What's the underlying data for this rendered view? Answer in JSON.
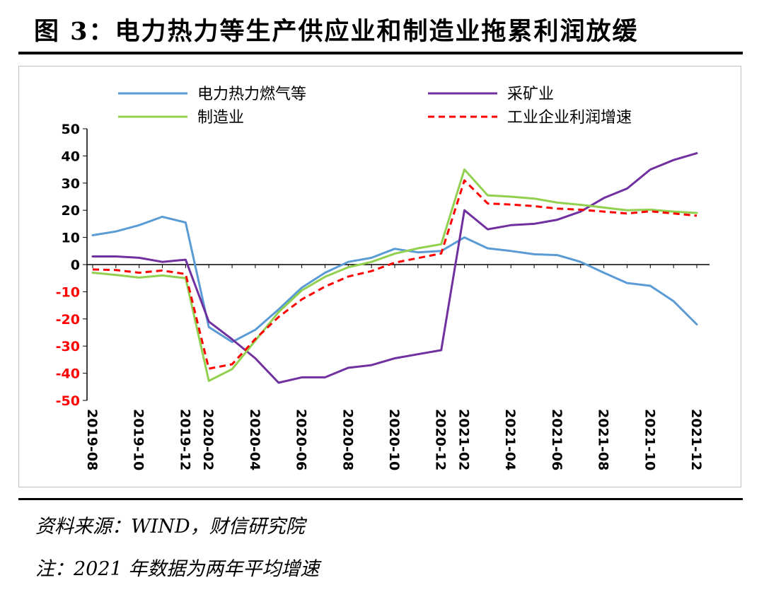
{
  "figure": {
    "title": "图 3：电力热力等生产供应业和制造业拖累利润放缓",
    "source": "资料来源：WIND，财信研究院",
    "note": "注：2021 年数据为两年平均增速"
  },
  "colors": {
    "power": "#5b9bd5",
    "mining": "#7030a0",
    "manufacturing": "#92d050",
    "industrial": "#ff0000",
    "negative_tick": "#ff0000",
    "positive_tick": "#000000"
  },
  "chart_data": {
    "type": "line",
    "title": "",
    "xlabel": "",
    "ylabel": "",
    "ylim": [
      -50,
      50
    ],
    "yticks": [
      50,
      40,
      30,
      20,
      10,
      0,
      -10,
      -20,
      -30,
      -40,
      -50
    ],
    "grid": false,
    "legend_position": "top",
    "x": [
      "2019-08",
      "2019-09",
      "2019-10",
      "2019-11",
      "2019-12",
      "2020-02",
      "2020-03",
      "2020-04",
      "2020-05",
      "2020-06",
      "2020-07",
      "2020-08",
      "2020-09",
      "2020-10",
      "2020-11",
      "2020-12",
      "2021-02",
      "2021-03",
      "2021-04",
      "2021-05",
      "2021-06",
      "2021-07",
      "2021-08",
      "2021-09",
      "2021-10",
      "2021-11",
      "2021-12"
    ],
    "xtick_labels": [
      "2019-08",
      "2019-10",
      "2019-12",
      "2020-02",
      "2020-04",
      "2020-06",
      "2020-08",
      "2020-10",
      "2020-12",
      "2021-02",
      "2021-04",
      "2021-06",
      "2021-08",
      "2021-10",
      "2021-12"
    ],
    "series": [
      {
        "name": "电力热力燃气等",
        "color": "#5b9bd5",
        "dashed": false,
        "values": [
          10.8,
          12.2,
          14.5,
          17.6,
          15.5,
          -23.0,
          -28.5,
          -24.0,
          -16.5,
          -8.5,
          -3.0,
          1.0,
          2.5,
          5.8,
          4.5,
          5.0,
          10.0,
          6.0,
          5.0,
          3.8,
          3.5,
          1.0,
          -3.0,
          -6.8,
          -7.8,
          -13.5,
          -22.0
        ]
      },
      {
        "name": "采矿业",
        "color": "#7030a0",
        "dashed": false,
        "values": [
          3.0,
          3.0,
          2.5,
          1.0,
          1.8,
          -21.0,
          -27.5,
          -34.5,
          -43.5,
          -41.5,
          -41.5,
          -38.0,
          -37.0,
          -34.5,
          -33.0,
          -31.5,
          20.0,
          13.0,
          14.5,
          15.0,
          16.5,
          19.5,
          24.5,
          28.0,
          35.0,
          38.5,
          41.0
        ]
      },
      {
        "name": "制造业",
        "color": "#92d050",
        "dashed": false,
        "values": [
          -3.0,
          -3.8,
          -4.8,
          -4.0,
          -5.0,
          -42.8,
          -38.5,
          -28.0,
          -17.5,
          -9.5,
          -4.5,
          -1.0,
          1.0,
          4.0,
          6.0,
          7.5,
          35.0,
          25.5,
          25.0,
          24.3,
          22.8,
          22.0,
          21.0,
          20.0,
          20.2,
          19.5,
          19.0
        ]
      },
      {
        "name": "工业企业利润增速",
        "color": "#ff0000",
        "dashed": true,
        "values": [
          -1.8,
          -2.0,
          -3.0,
          -2.2,
          -3.5,
          -38.3,
          -36.7,
          -27.4,
          -19.3,
          -12.8,
          -8.1,
          -4.4,
          -2.4,
          0.7,
          2.4,
          4.1,
          31.0,
          22.5,
          22.1,
          21.5,
          20.6,
          20.2,
          19.5,
          18.8,
          19.6,
          18.8,
          18.0
        ]
      }
    ]
  }
}
